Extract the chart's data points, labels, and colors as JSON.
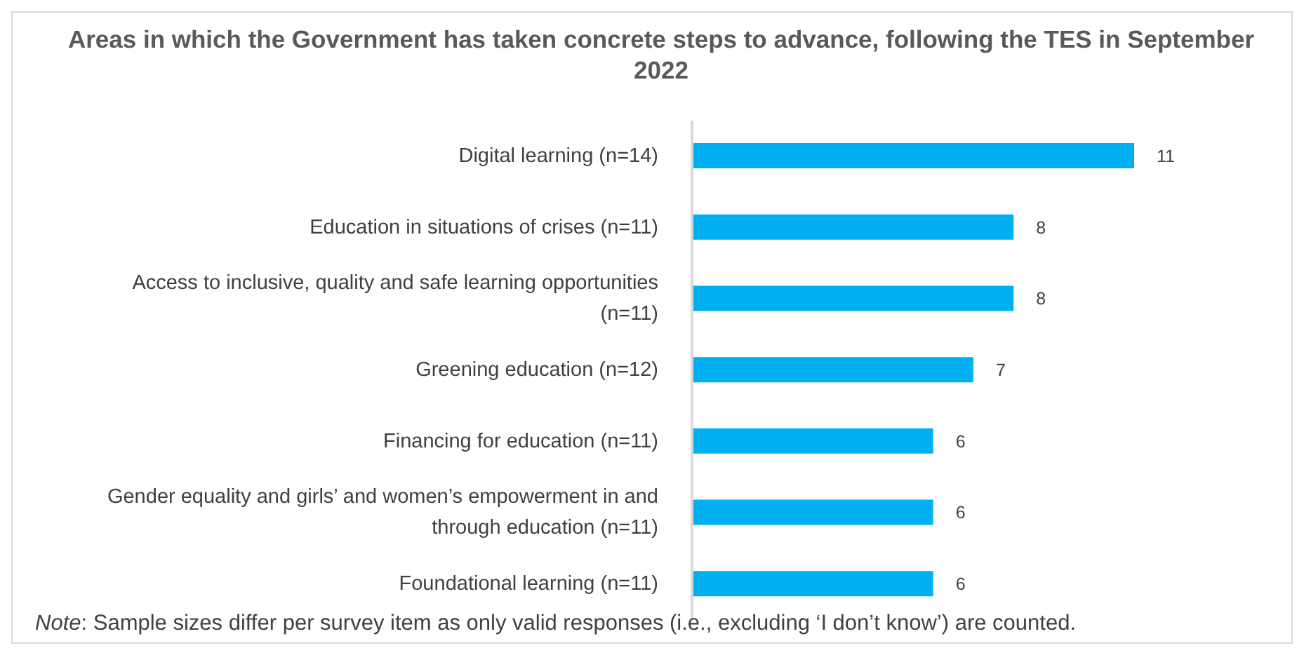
{
  "chart_data": {
    "type": "bar",
    "orientation": "horizontal",
    "title": "Areas in which the Government has taken concrete steps to advance, following the TES in September 2022",
    "categories": [
      "Digital learning (n=14)",
      "Education in situations of crises (n=11)",
      "Access to inclusive, quality and safe learning opportunities (n=11)",
      "Greening education (n=12)",
      "Financing for education (n=11)",
      "Gender equality and girls’ and women’s empowerment in and through education (n=11)",
      "Foundational learning (n=11)"
    ],
    "values": [
      11,
      8,
      8,
      7,
      6,
      6,
      6
    ],
    "color": "#00b0f0",
    "data_labels": true,
    "grid": false,
    "legend": false,
    "tick_labels": "y",
    "annotations": [
      "Note: Sample sizes differ per survey item as only valid responses (i.e., excluding ‘I don’t know’) are counted."
    ]
  }
}
